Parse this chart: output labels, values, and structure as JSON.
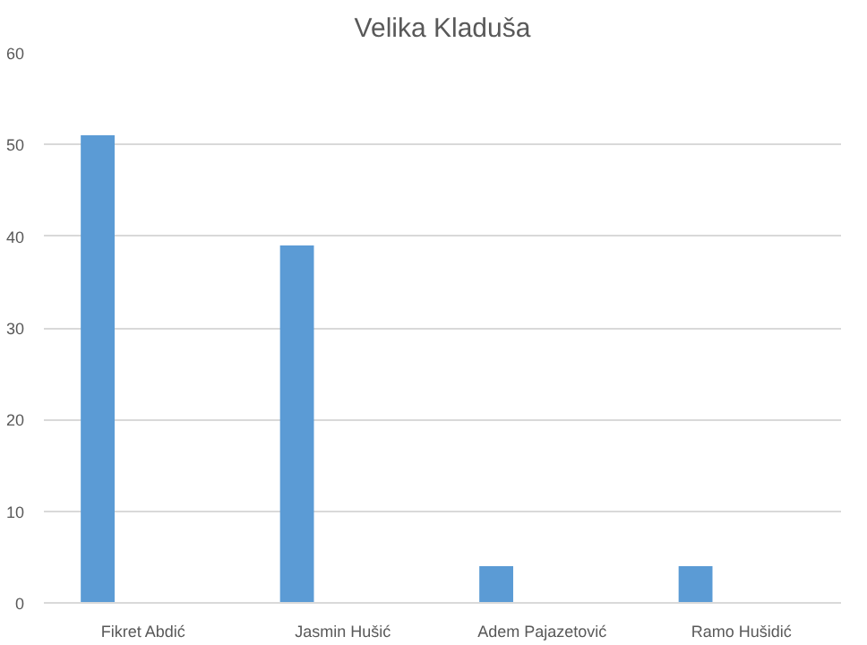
{
  "chart_data": {
    "type": "bar",
    "title": "Velika Kladuša",
    "categories": [
      "Fikret Abdić",
      "Jasmin Hušić",
      "Adem Pajazetović",
      "Ramo Hušidić"
    ],
    "values": [
      51,
      39,
      4,
      4
    ],
    "color": "#5b9bd5",
    "ylim": [
      0,
      60
    ],
    "yticks": [
      0,
      10,
      20,
      30,
      40,
      50,
      60
    ],
    "grid": "y"
  }
}
